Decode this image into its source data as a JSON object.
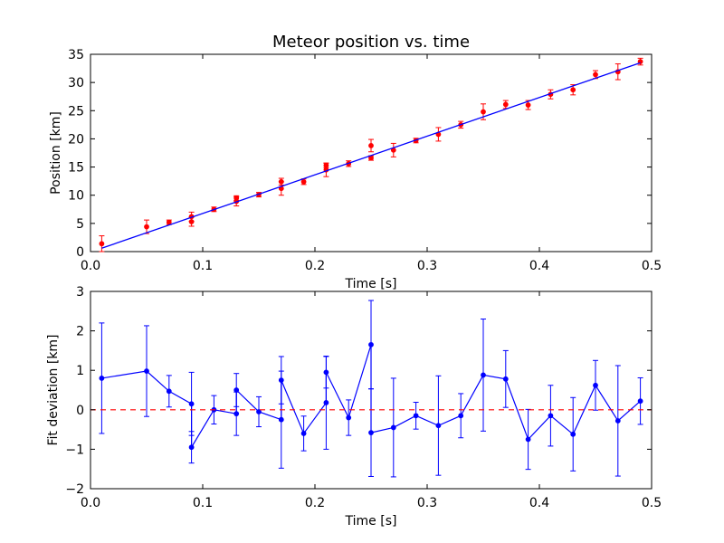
{
  "chart_data": [
    {
      "type": "scatter",
      "title": "Meteor position vs. time",
      "xlabel": "Time [s]",
      "ylabel": "Position [km]",
      "xlim": [
        0.0,
        0.5
      ],
      "ylim": [
        0,
        35
      ],
      "xticks": [
        "0.0",
        "0.1",
        "0.2",
        "0.3",
        "0.4",
        "0.5"
      ],
      "yticks": [
        "0",
        "5",
        "10",
        "15",
        "20",
        "25",
        "30",
        "35"
      ],
      "grid": false,
      "series": [
        {
          "kind": "points-with-errorbars",
          "color": "#ff0000",
          "x": [
            0.01,
            0.05,
            0.07,
            0.09,
            0.09,
            0.11,
            0.13,
            0.13,
            0.15,
            0.17,
            0.17,
            0.19,
            0.21,
            0.21,
            0.23,
            0.25,
            0.25,
            0.27,
            0.29,
            0.31,
            0.33,
            0.35,
            0.37,
            0.39,
            0.41,
            0.43,
            0.45,
            0.47,
            0.49
          ],
          "y": [
            1.4,
            4.4,
            5.2,
            5.3,
            6.2,
            7.5,
            8.9,
            9.5,
            10.1,
            11.2,
            12.4,
            12.4,
            14.5,
            15.3,
            15.6,
            18.8,
            16.6,
            18.0,
            19.7,
            20.8,
            22.5,
            24.8,
            26.1,
            26.0,
            27.9,
            28.7,
            31.4,
            31.9,
            33.7
          ],
          "yerr": [
            1.4,
            1.2,
            0.4,
            0.8,
            0.8,
            0.4,
            0.8,
            0.4,
            0.4,
            1.2,
            0.6,
            0.5,
            1.2,
            0.4,
            0.5,
            1.1,
            0.4,
            1.2,
            0.4,
            1.2,
            0.6,
            1.4,
            0.7,
            0.8,
            0.8,
            0.9,
            0.7,
            1.4,
            0.6
          ]
        },
        {
          "kind": "fit-line",
          "color": "#0000ff",
          "x": [
            0.01,
            0.49
          ],
          "y": [
            0.6,
            33.5
          ]
        }
      ]
    },
    {
      "type": "line",
      "xlabel": "Time [s]",
      "ylabel": "Fit deviation [km]",
      "xlim": [
        0.0,
        0.5
      ],
      "ylim": [
        -2,
        3
      ],
      "xticks": [
        "0.0",
        "0.1",
        "0.2",
        "0.3",
        "0.4",
        "0.5"
      ],
      "yticks": [
        "−2",
        "−1",
        "0",
        "1",
        "2",
        "3"
      ],
      "grid": false,
      "series": [
        {
          "kind": "line-with-errorbars",
          "color": "#0000ff",
          "x": [
            0.01,
            0.05,
            0.07,
            0.09,
            0.09,
            0.11,
            0.13,
            0.13,
            0.15,
            0.17,
            0.17,
            0.19,
            0.21,
            0.21,
            0.23,
            0.25,
            0.25,
            0.27,
            0.29,
            0.31,
            0.33,
            0.35,
            0.37,
            0.39,
            0.41,
            0.43,
            0.45,
            0.47,
            0.49
          ],
          "y": [
            0.8,
            0.98,
            0.47,
            0.15,
            -0.95,
            0.0,
            -0.1,
            0.5,
            -0.05,
            -0.25,
            0.75,
            -0.6,
            0.18,
            0.95,
            -0.2,
            1.65,
            -0.58,
            -0.45,
            -0.15,
            -0.4,
            -0.15,
            0.88,
            0.78,
            -0.75,
            -0.15,
            -0.62,
            0.62,
            -0.28,
            0.22
          ],
          "yerr": [
            1.4,
            1.15,
            0.4,
            0.8,
            0.4,
            0.36,
            0.55,
            0.42,
            0.38,
            1.23,
            0.6,
            0.44,
            1.18,
            0.4,
            0.45,
            1.12,
            1.11,
            1.25,
            0.34,
            1.26,
            0.56,
            1.42,
            0.72,
            0.76,
            0.77,
            0.93,
            0.63,
            1.4,
            0.59
          ]
        },
        {
          "kind": "zero-reference",
          "color": "#ff0000",
          "style": "dashed",
          "y": 0
        }
      ]
    }
  ]
}
